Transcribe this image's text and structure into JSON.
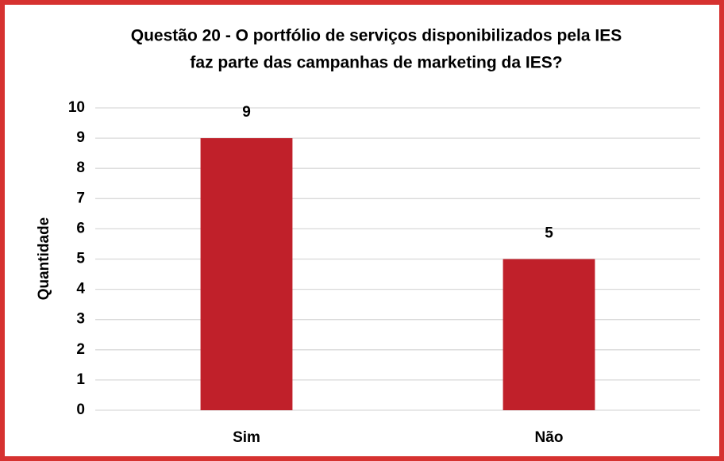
{
  "chart_data": {
    "type": "bar",
    "title": [
      "Questão 20 - O portfólio de serviços disponibilizados pela IES",
      "faz parte das campanhas de marketing da IES?"
    ],
    "y_label": "Quantidade",
    "categories": [
      "Sim",
      "Não"
    ],
    "values": [
      9,
      5
    ],
    "color": "#c0202a",
    "ylim": [
      0,
      10
    ],
    "yticks": [
      0,
      1,
      2,
      3,
      4,
      5,
      6,
      7,
      8,
      9,
      10
    ],
    "grid": true
  }
}
